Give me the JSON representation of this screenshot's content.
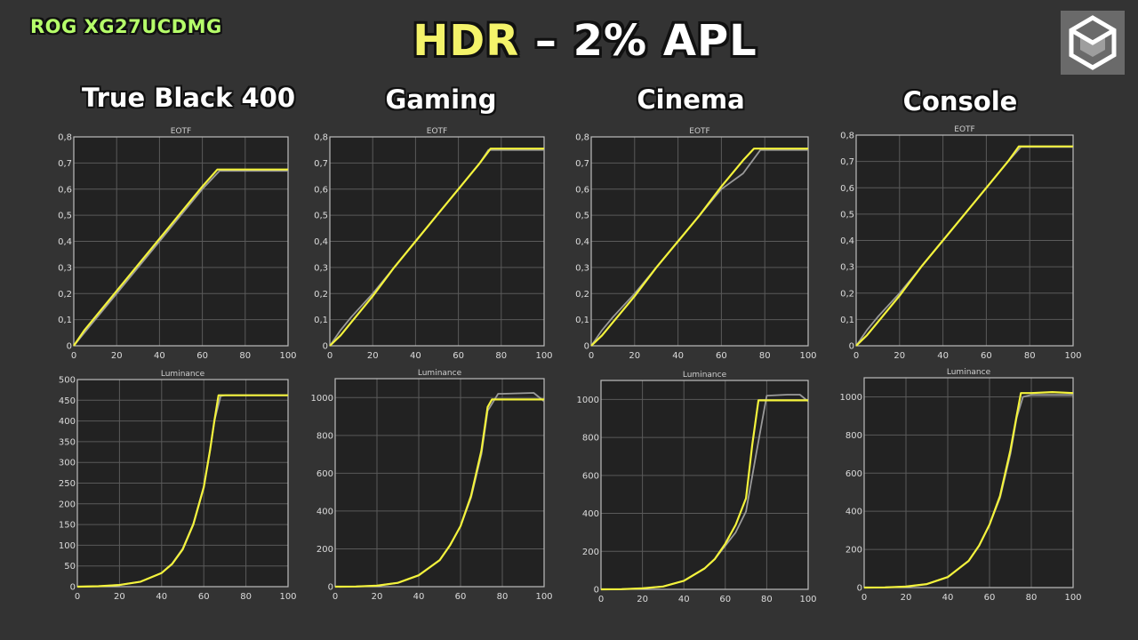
{
  "header": {
    "model": "ROG XG27UCDMG",
    "title_highlight": "HDR",
    "title_rest": " – 2% APL"
  },
  "logo_icon": "cube-logo-icon",
  "colors": {
    "measured": "#f4f33c",
    "target": "#9a9a9a",
    "plot_bg": "#222222",
    "grid": "#5a5a5a",
    "frame": "#bdbdbd"
  },
  "columns": [
    {
      "name": "True Black 400"
    },
    {
      "name": "Gaming"
    },
    {
      "name": "Cinema"
    },
    {
      "name": "Console"
    }
  ],
  "chart_data": [
    {
      "type": "line",
      "mode": "True Black 400",
      "title": "EOTF",
      "xlim": [
        0,
        100
      ],
      "ylim": [
        0,
        0.8
      ],
      "x_ticks": [
        0,
        20,
        40,
        60,
        80,
        100
      ],
      "y_ticks": [
        "0",
        "0,1",
        "0,2",
        "0,3",
        "0,4",
        "0,5",
        "0,6",
        "0,7",
        "0,8"
      ],
      "series": [
        {
          "role": "measured",
          "x": [
            0,
            5,
            10,
            20,
            30,
            40,
            50,
            60,
            67,
            70,
            80,
            90,
            100
          ],
          "y": [
            0,
            0.06,
            0.11,
            0.21,
            0.31,
            0.41,
            0.51,
            0.61,
            0.675,
            0.675,
            0.675,
            0.675,
            0.675
          ]
        },
        {
          "role": "target",
          "x": [
            0,
            5,
            10,
            20,
            30,
            40,
            50,
            60,
            68,
            70,
            80,
            90,
            100
          ],
          "y": [
            0,
            0.05,
            0.1,
            0.2,
            0.3,
            0.4,
            0.5,
            0.6,
            0.67,
            0.67,
            0.67,
            0.67,
            0.67
          ]
        }
      ]
    },
    {
      "type": "line",
      "mode": "Gaming",
      "title": "EOTF",
      "xlim": [
        0,
        100
      ],
      "ylim": [
        0,
        0.8
      ],
      "x_ticks": [
        0,
        20,
        40,
        60,
        80,
        100
      ],
      "y_ticks": [
        "0",
        "0,1",
        "0,2",
        "0,3",
        "0,4",
        "0,5",
        "0,6",
        "0,7",
        "0,8"
      ],
      "series": [
        {
          "role": "measured",
          "x": [
            0,
            5,
            10,
            20,
            30,
            40,
            50,
            60,
            70,
            75,
            80,
            90,
            100
          ],
          "y": [
            0,
            0.04,
            0.09,
            0.19,
            0.3,
            0.4,
            0.5,
            0.6,
            0.7,
            0.755,
            0.755,
            0.755,
            0.755
          ]
        },
        {
          "role": "target",
          "x": [
            0,
            5,
            10,
            20,
            30,
            40,
            50,
            60,
            70,
            74,
            80,
            90,
            100
          ],
          "y": [
            0,
            0.06,
            0.11,
            0.2,
            0.3,
            0.4,
            0.5,
            0.6,
            0.7,
            0.75,
            0.75,
            0.75,
            0.75
          ]
        }
      ]
    },
    {
      "type": "line",
      "mode": "Cinema",
      "title": "EOTF",
      "xlim": [
        0,
        100
      ],
      "ylim": [
        0,
        0.8
      ],
      "x_ticks": [
        0,
        20,
        40,
        60,
        80,
        100
      ],
      "y_ticks": [
        "0",
        "0,1",
        "0,2",
        "0,3",
        "0,4",
        "0,5",
        "0,6",
        "0,7",
        "0,8"
      ],
      "series": [
        {
          "role": "measured",
          "x": [
            0,
            5,
            10,
            20,
            30,
            40,
            50,
            60,
            70,
            75,
            80,
            90,
            100
          ],
          "y": [
            0,
            0.04,
            0.09,
            0.19,
            0.3,
            0.4,
            0.5,
            0.61,
            0.71,
            0.755,
            0.755,
            0.755,
            0.755
          ]
        },
        {
          "role": "target",
          "x": [
            0,
            5,
            10,
            20,
            30,
            40,
            50,
            60,
            70,
            78,
            80,
            90,
            100
          ],
          "y": [
            0,
            0.06,
            0.11,
            0.2,
            0.3,
            0.4,
            0.5,
            0.6,
            0.66,
            0.75,
            0.75,
            0.75,
            0.75
          ]
        }
      ]
    },
    {
      "type": "line",
      "mode": "Console",
      "title": "EOTF",
      "xlim": [
        0,
        100
      ],
      "ylim": [
        0,
        0.8
      ],
      "x_ticks": [
        0,
        20,
        40,
        60,
        80,
        100
      ],
      "y_ticks": [
        "0",
        "0,1",
        "0,2",
        "0,3",
        "0,4",
        "0,5",
        "0,6",
        "0,7",
        "0,8"
      ],
      "series": [
        {
          "role": "measured",
          "x": [
            0,
            5,
            10,
            20,
            30,
            40,
            50,
            60,
            70,
            75,
            80,
            90,
            100
          ],
          "y": [
            0,
            0.04,
            0.09,
            0.19,
            0.3,
            0.4,
            0.5,
            0.6,
            0.7,
            0.757,
            0.757,
            0.757,
            0.757
          ]
        },
        {
          "role": "target",
          "x": [
            0,
            5,
            10,
            20,
            30,
            40,
            50,
            60,
            70,
            76,
            80,
            90,
            100
          ],
          "y": [
            0,
            0.06,
            0.11,
            0.2,
            0.3,
            0.4,
            0.5,
            0.6,
            0.7,
            0.755,
            0.755,
            0.755,
            0.755
          ]
        }
      ]
    },
    {
      "type": "line",
      "mode": "True Black 400",
      "title": "Luminance",
      "xlim": [
        0,
        100
      ],
      "ylim": [
        0,
        500
      ],
      "x_ticks": [
        0,
        20,
        40,
        60,
        80,
        100
      ],
      "y_ticks": [
        "0",
        "50",
        "100",
        "150",
        "200",
        "250",
        "300",
        "350",
        "400",
        "450",
        "500"
      ],
      "series": [
        {
          "role": "measured",
          "x": [
            0,
            10,
            20,
            30,
            40,
            45,
            50,
            55,
            60,
            63,
            65,
            67,
            70,
            80,
            90,
            100
          ],
          "y": [
            0,
            1,
            4,
            12,
            33,
            55,
            90,
            150,
            240,
            330,
            400,
            462,
            462,
            462,
            462,
            462
          ]
        },
        {
          "role": "target",
          "x": [
            0,
            10,
            20,
            30,
            40,
            45,
            50,
            55,
            60,
            63,
            65,
            68,
            70,
            80,
            90,
            100
          ],
          "y": [
            0,
            1,
            4,
            12,
            33,
            56,
            92,
            152,
            242,
            330,
            400,
            460,
            462,
            462,
            462,
            462
          ]
        }
      ]
    },
    {
      "type": "line",
      "mode": "Gaming",
      "title": "Luminance",
      "xlim": [
        0,
        100
      ],
      "ylim": [
        0,
        1100
      ],
      "x_ticks": [
        0,
        20,
        40,
        60,
        80,
        100
      ],
      "y_ticks": [
        "0",
        "200",
        "400",
        "600",
        "800",
        "1000"
      ],
      "series": [
        {
          "role": "measured",
          "x": [
            0,
            10,
            20,
            30,
            40,
            50,
            55,
            60,
            65,
            70,
            73,
            75,
            80,
            90,
            100
          ],
          "y": [
            0,
            1,
            5,
            20,
            60,
            140,
            220,
            320,
            480,
            720,
            950,
            990,
            990,
            990,
            990
          ]
        },
        {
          "role": "target",
          "x": [
            0,
            10,
            20,
            30,
            40,
            50,
            55,
            60,
            65,
            70,
            73,
            78,
            80,
            95,
            100
          ],
          "y": [
            0,
            1,
            5,
            20,
            60,
            140,
            220,
            320,
            470,
            700,
            930,
            1020,
            1020,
            1025,
            980
          ]
        }
      ]
    },
    {
      "type": "line",
      "mode": "Cinema",
      "title": "Luminance",
      "xlim": [
        0,
        100
      ],
      "ylim": [
        0,
        1100
      ],
      "x_ticks": [
        0,
        20,
        40,
        60,
        80,
        100
      ],
      "y_ticks": [
        "0",
        "200",
        "400",
        "600",
        "800",
        "1000"
      ],
      "series": [
        {
          "role": "measured",
          "x": [
            0,
            10,
            20,
            30,
            40,
            50,
            55,
            60,
            65,
            70,
            73,
            76,
            80,
            90,
            100
          ],
          "y": [
            0,
            1,
            5,
            15,
            45,
            110,
            160,
            240,
            340,
            480,
            760,
            995,
            995,
            995,
            995
          ]
        },
        {
          "role": "target",
          "x": [
            0,
            10,
            20,
            30,
            40,
            50,
            55,
            60,
            65,
            70,
            75,
            80,
            90,
            96,
            100
          ],
          "y": [
            0,
            1,
            5,
            15,
            45,
            110,
            160,
            230,
            300,
            410,
            720,
            1020,
            1025,
            1025,
            990
          ]
        }
      ]
    },
    {
      "type": "line",
      "mode": "Console",
      "title": "Luminance",
      "xlim": [
        0,
        100
      ],
      "ylim": [
        0,
        1100
      ],
      "x_ticks": [
        0,
        20,
        40,
        60,
        80,
        100
      ],
      "y_ticks": [
        "0",
        "200",
        "400",
        "600",
        "800",
        "1000"
      ],
      "series": [
        {
          "role": "measured",
          "x": [
            0,
            10,
            20,
            30,
            40,
            50,
            55,
            60,
            65,
            70,
            73,
            75,
            80,
            90,
            100
          ],
          "y": [
            0,
            1,
            5,
            18,
            55,
            140,
            220,
            330,
            480,
            720,
            900,
            1020,
            1020,
            1025,
            1020
          ]
        },
        {
          "role": "target",
          "x": [
            0,
            10,
            20,
            30,
            40,
            50,
            55,
            60,
            65,
            70,
            73,
            76,
            80,
            90,
            100
          ],
          "y": [
            0,
            1,
            5,
            18,
            55,
            140,
            220,
            330,
            470,
            700,
            890,
            1000,
            1010,
            1010,
            1010
          ]
        }
      ]
    }
  ]
}
